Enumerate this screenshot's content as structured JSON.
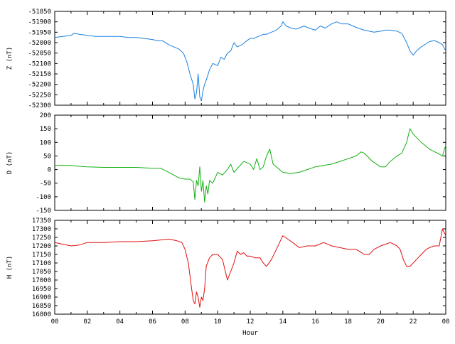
{
  "chart_data": [
    {
      "type": "line",
      "ylabel": "Z (nT)",
      "ylim": [
        -52300,
        -51850
      ],
      "yticks": [
        -51850,
        -51900,
        -51950,
        -52000,
        -52050,
        -52100,
        -52150,
        -52200,
        -52250,
        -52300
      ],
      "xlim": [
        0,
        24
      ],
      "color": "#1a80e0",
      "series": [
        {
          "x": [
            0,
            0.5,
            1,
            1.2,
            1.5,
            2,
            2.5,
            3,
            3.5,
            4,
            4.5,
            5,
            5.5,
            6,
            6.3,
            6.6,
            7,
            7.3,
            7.6,
            7.9,
            8.1,
            8.3,
            8.5,
            8.6,
            8.7,
            8.8,
            8.9,
            9.0,
            9.1,
            9.2,
            9.3,
            9.5,
            9.7,
            10,
            10.2,
            10.4,
            10.6,
            10.8,
            11,
            11.2,
            11.5,
            11.8,
            12,
            12.2,
            12.5,
            12.8,
            13,
            13.3,
            13.6,
            13.9,
            14,
            14.2,
            14.5,
            14.8,
            15,
            15.3,
            15.6,
            16,
            16.3,
            16.6,
            17,
            17.3,
            17.6,
            18,
            18.3,
            18.6,
            19,
            19.3,
            19.6,
            20,
            20.3,
            20.6,
            21,
            21.3,
            21.6,
            21.8,
            22,
            22.2,
            22.5,
            22.8,
            23,
            23.3,
            23.6,
            23.8,
            24
          ],
          "values": [
            -51975,
            -51970,
            -51965,
            -51955,
            -51960,
            -51965,
            -51970,
            -51970,
            -51970,
            -51970,
            -51975,
            -51975,
            -51980,
            -51985,
            -51990,
            -51990,
            -52010,
            -52020,
            -52030,
            -52050,
            -52090,
            -52150,
            -52200,
            -52270,
            -52240,
            -52150,
            -52260,
            -52280,
            -52230,
            -52200,
            -52180,
            -52130,
            -52100,
            -52110,
            -52070,
            -52080,
            -52050,
            -52040,
            -52000,
            -52020,
            -52010,
            -51990,
            -51980,
            -51980,
            -51970,
            -51960,
            -51960,
            -51950,
            -51940,
            -51920,
            -51900,
            -51920,
            -51930,
            -51935,
            -51930,
            -51920,
            -51930,
            -51940,
            -51920,
            -51930,
            -51910,
            -51900,
            -51910,
            -51910,
            -51920,
            -51930,
            -51940,
            -51945,
            -51950,
            -51945,
            -51940,
            -51940,
            -51945,
            -51955,
            -52000,
            -52040,
            -52060,
            -52040,
            -52020,
            -52005,
            -51995,
            -51990,
            -52000,
            -52010,
            -52040
          ]
        }
      ]
    },
    {
      "type": "line",
      "ylabel": "D (nT)",
      "ylim": [
        -150,
        200
      ],
      "yticks": [
        200,
        150,
        100,
        50,
        0,
        -50,
        -100,
        -150
      ],
      "xlim": [
        0,
        24
      ],
      "color": "#10b010",
      "series": [
        {
          "x": [
            0,
            0.5,
            1,
            1.5,
            2,
            3,
            4,
            5,
            6,
            6.5,
            7,
            7.3,
            7.6,
            8,
            8.3,
            8.5,
            8.6,
            8.7,
            8.8,
            8.9,
            9.0,
            9.1,
            9.2,
            9.3,
            9.4,
            9.5,
            9.7,
            10,
            10.3,
            10.6,
            10.8,
            11,
            11.3,
            11.6,
            12,
            12.2,
            12.4,
            12.6,
            12.8,
            13,
            13.2,
            13.4,
            13.6,
            14,
            14.5,
            15,
            15.5,
            16,
            16.5,
            17,
            17.5,
            18,
            18.5,
            18.8,
            19,
            19.5,
            20,
            20.3,
            20.6,
            21,
            21.3,
            21.6,
            21.8,
            22,
            22.5,
            23,
            23.5,
            23.8,
            24
          ],
          "values": [
            15,
            15,
            15,
            12,
            10,
            8,
            8,
            8,
            5,
            5,
            -10,
            -20,
            -30,
            -35,
            -35,
            -45,
            -110,
            -40,
            -60,
            10,
            -80,
            -40,
            -120,
            -60,
            -90,
            -40,
            -50,
            -10,
            -20,
            0,
            20,
            -10,
            10,
            30,
            20,
            0,
            40,
            0,
            10,
            50,
            75,
            20,
            10,
            -10,
            -15,
            -10,
            0,
            10,
            15,
            20,
            30,
            40,
            50,
            65,
            60,
            30,
            10,
            10,
            30,
            50,
            60,
            100,
            150,
            130,
            100,
            75,
            60,
            50,
            90
          ]
        }
      ]
    },
    {
      "type": "line",
      "ylabel": "H (nT)",
      "xlabel": "Hour",
      "ylim": [
        16800,
        17350
      ],
      "yticks": [
        17350,
        17300,
        17250,
        17200,
        17150,
        17100,
        17050,
        17000,
        16950,
        16900,
        16850,
        16800
      ],
      "xlim": [
        0,
        24
      ],
      "xticks": [
        "00",
        "02",
        "04",
        "06",
        "08",
        "10",
        "12",
        "14",
        "16",
        "18",
        "20",
        "22",
        "00"
      ],
      "color": "#e01010",
      "series": [
        {
          "x": [
            0,
            0.5,
            1,
            1.5,
            2,
            3,
            4,
            5,
            6,
            6.5,
            7,
            7.5,
            7.8,
            8,
            8.2,
            8.4,
            8.5,
            8.6,
            8.7,
            8.8,
            8.9,
            9.0,
            9.1,
            9.2,
            9.3,
            9.5,
            9.7,
            10,
            10.3,
            10.6,
            10.8,
            11,
            11.2,
            11.4,
            11.6,
            11.8,
            12,
            12.3,
            12.6,
            12.8,
            13,
            13.3,
            13.6,
            13.8,
            14,
            14.3,
            14.6,
            15,
            15.5,
            16,
            16.5,
            17,
            17.5,
            18,
            18.5,
            19,
            19.3,
            19.6,
            20,
            20.3,
            20.6,
            21,
            21.2,
            21.4,
            21.6,
            21.8,
            22,
            22.2,
            22.5,
            22.8,
            23,
            23.3,
            23.6,
            23.8,
            24
          ],
          "values": [
            17220,
            17210,
            17200,
            17205,
            17220,
            17220,
            17225,
            17225,
            17230,
            17235,
            17240,
            17230,
            17220,
            17180,
            17100,
            16950,
            16880,
            16860,
            16930,
            16900,
            16840,
            16900,
            16880,
            16950,
            17080,
            17130,
            17150,
            17150,
            17120,
            17000,
            17050,
            17100,
            17170,
            17150,
            17160,
            17140,
            17140,
            17130,
            17130,
            17100,
            17080,
            17120,
            17180,
            17220,
            17260,
            17240,
            17220,
            17190,
            17200,
            17200,
            17220,
            17200,
            17190,
            17180,
            17180,
            17150,
            17150,
            17180,
            17200,
            17210,
            17220,
            17200,
            17180,
            17120,
            17080,
            17080,
            17100,
            17120,
            17150,
            17180,
            17190,
            17200,
            17200,
            17300,
            17260
          ]
        }
      ]
    }
  ]
}
